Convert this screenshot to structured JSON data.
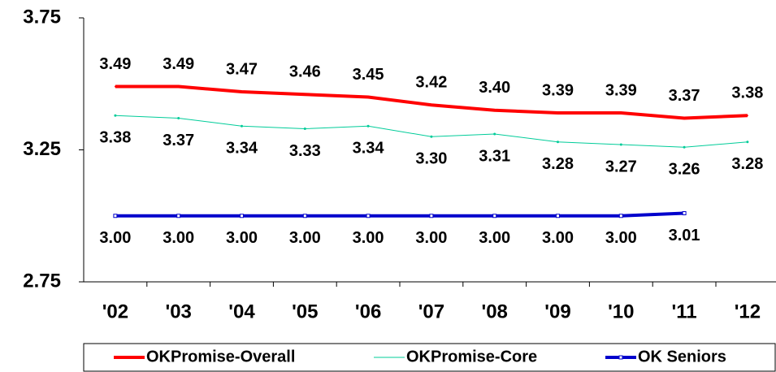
{
  "chart_data": {
    "type": "line",
    "categories": [
      "'02",
      "'03",
      "'04",
      "'05",
      "'06",
      "'07",
      "'08",
      "'09",
      "'10",
      "'11",
      "'12"
    ],
    "series": [
      {
        "name": "OKPromise-Overall",
        "color": "#ff0000",
        "values": [
          3.49,
          3.49,
          3.47,
          3.46,
          3.45,
          3.42,
          3.4,
          3.39,
          3.39,
          3.37,
          3.38
        ],
        "value_labels": [
          "3.49",
          "3.49",
          "3.47",
          "3.46",
          "3.45",
          "3.42",
          "3.40",
          "3.39",
          "3.39",
          "3.37",
          "3.38"
        ]
      },
      {
        "name": "OKPromise-Core",
        "color": "#00cc99",
        "values": [
          3.38,
          3.37,
          3.34,
          3.33,
          3.34,
          3.3,
          3.31,
          3.28,
          3.27,
          3.26,
          3.28
        ],
        "value_labels": [
          "3.38",
          "3.37",
          "3.34",
          "3.33",
          "3.34",
          "3.30",
          "3.31",
          "3.28",
          "3.27",
          "3.26",
          "3.28"
        ]
      },
      {
        "name": "OK Seniors",
        "color": "#0000cc",
        "values": [
          3.0,
          3.0,
          3.0,
          3.0,
          3.0,
          3.0,
          3.0,
          3.0,
          3.0,
          3.01,
          null
        ],
        "value_labels": [
          "3.00",
          "3.00",
          "3.00",
          "3.00",
          "3.00",
          "3.00",
          "3.00",
          "3.00",
          "3.00",
          "3.01",
          null
        ]
      }
    ],
    "ylim": [
      2.75,
      3.75
    ],
    "yticks": [
      2.75,
      3.25,
      3.75
    ],
    "grid": false,
    "legend": "bottom"
  }
}
